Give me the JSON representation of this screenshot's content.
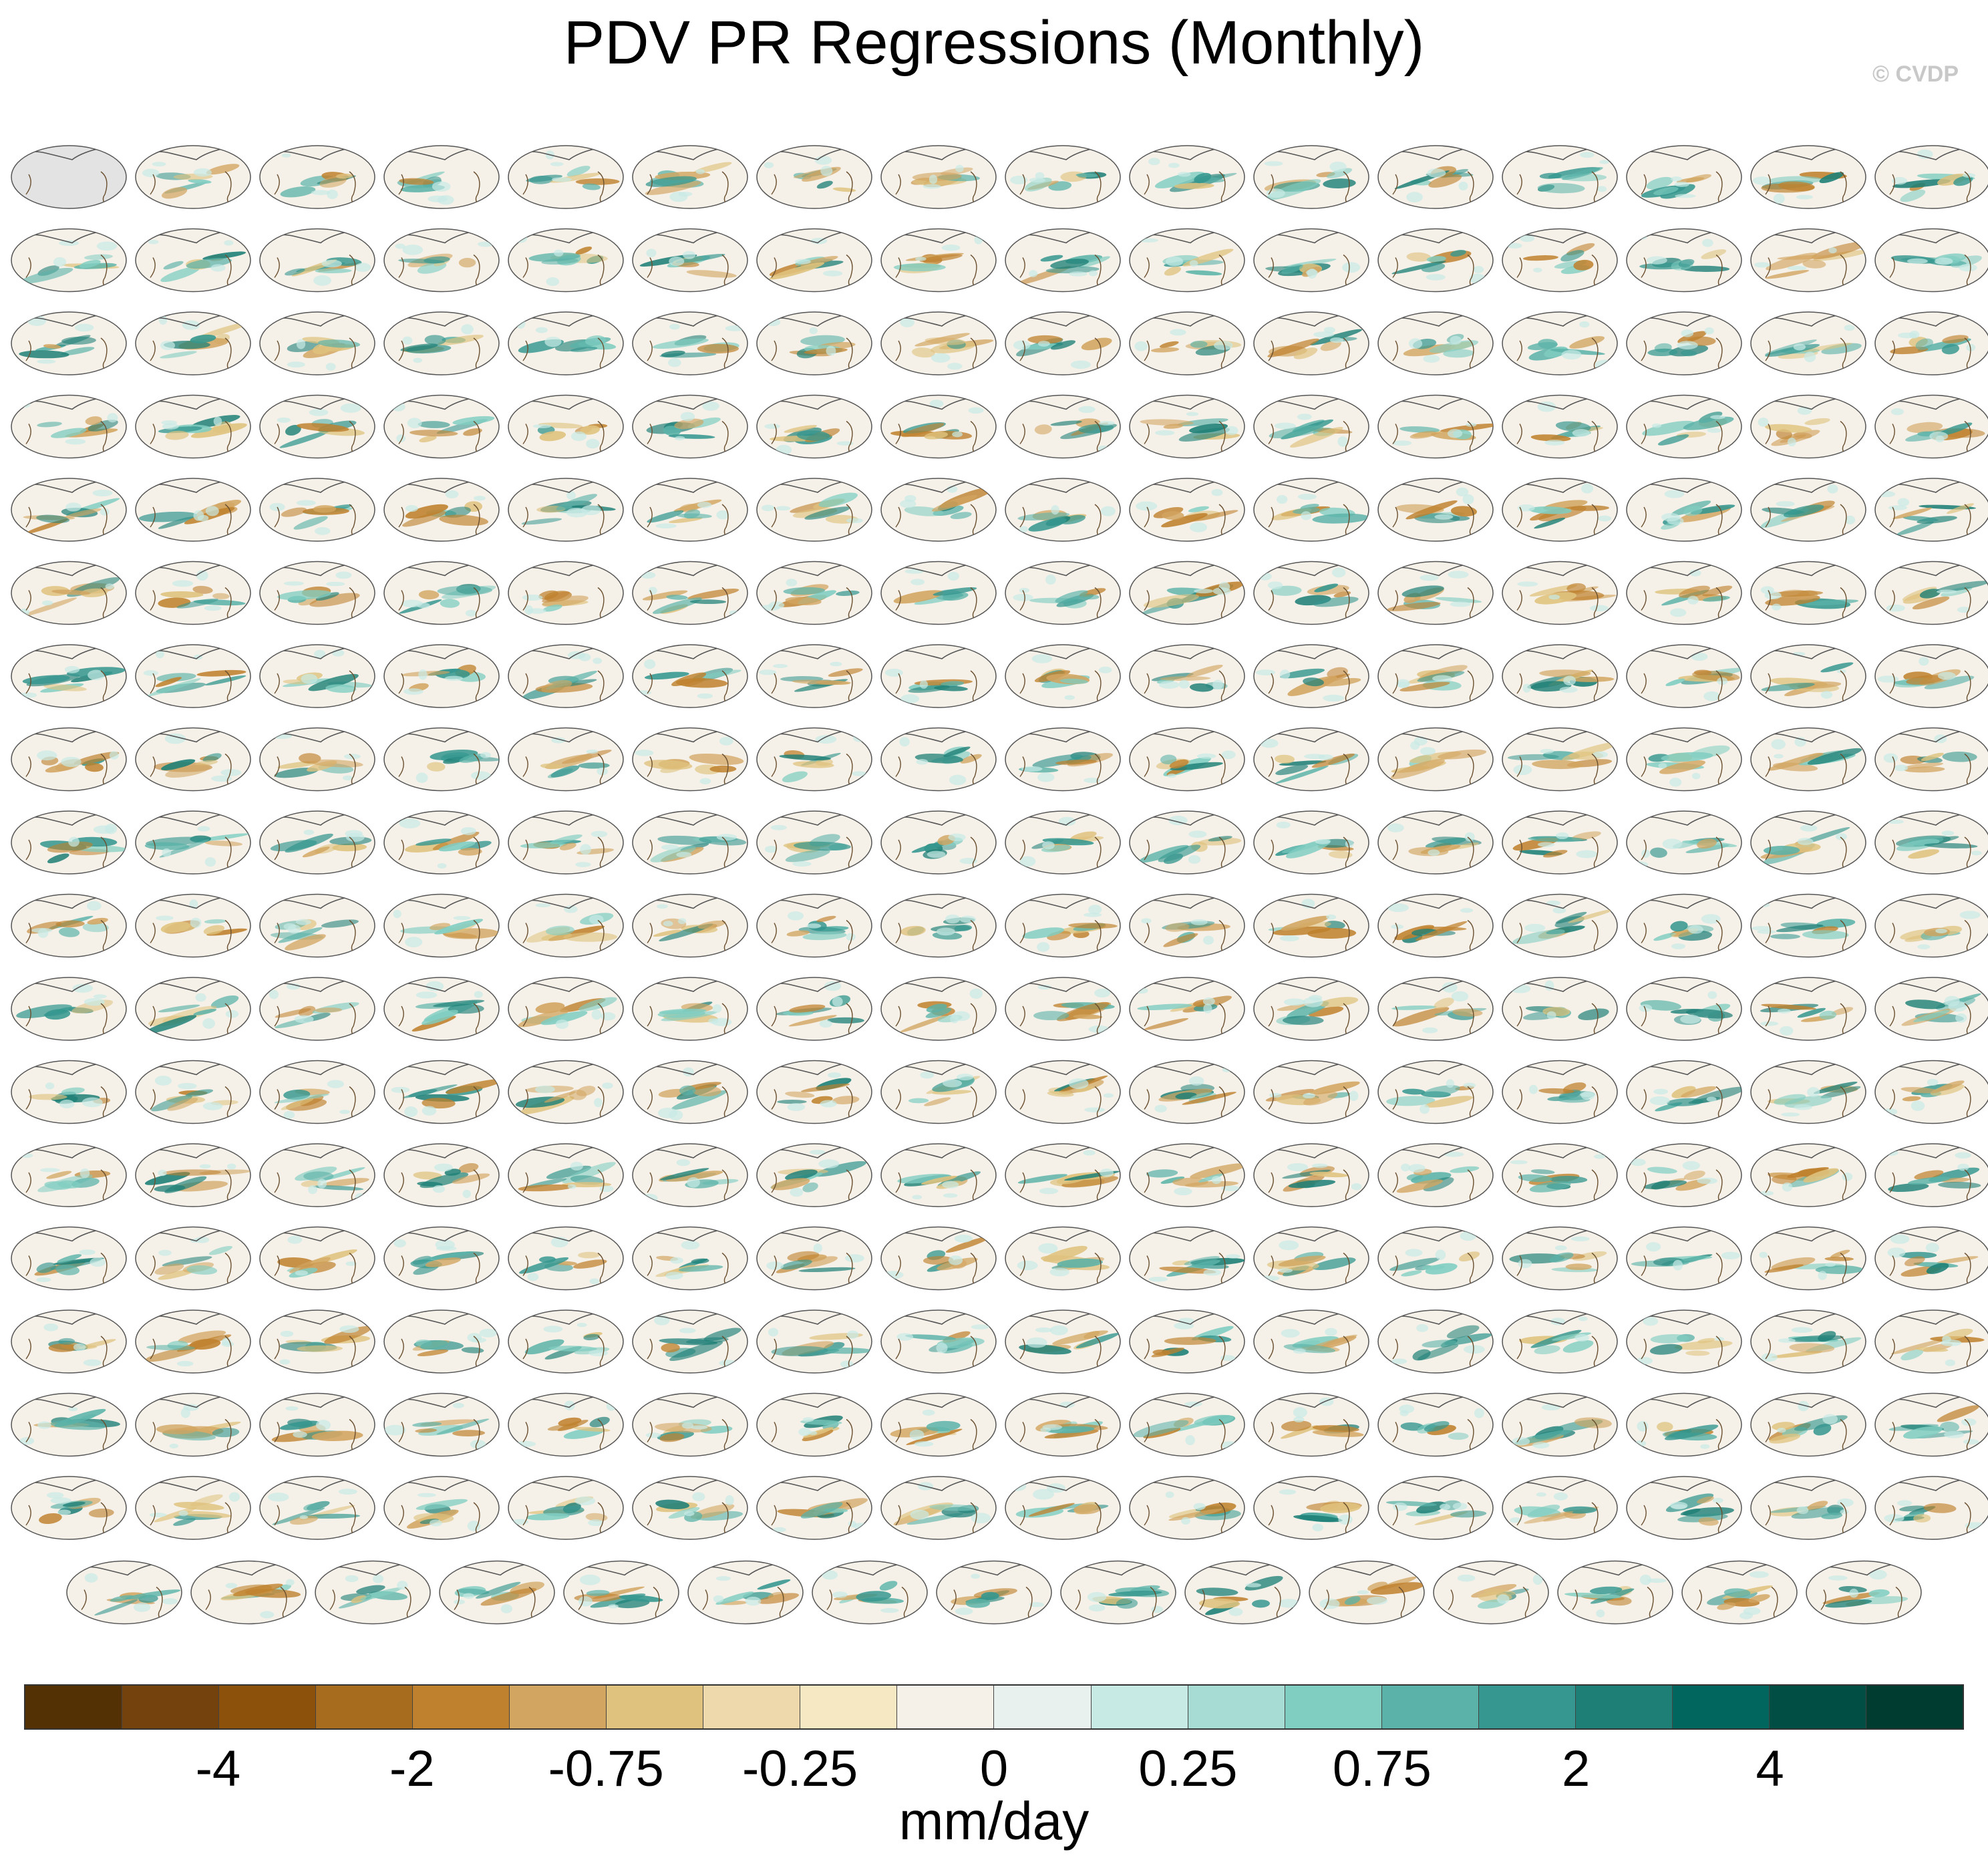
{
  "title": "PDV PR Regressions (Monthly)",
  "watermark": "© CVDP",
  "chart_data": {
    "type": "heatmap",
    "description_free": true,
    "units": "mm/day",
    "colorbar": {
      "colors": [
        "#543005",
        "#74420d",
        "#8c510a",
        "#a86c1f",
        "#bf812d",
        "#d2a560",
        "#dfc27d",
        "#edd9ab",
        "#f6e8c3",
        "#f5f1e9",
        "#e9f1ef",
        "#c7eae5",
        "#a6dcd3",
        "#80cdc1",
        "#5ab2a8",
        "#35978f",
        "#1d7f76",
        "#01665e",
        "#004e44",
        "#003c30"
      ],
      "tick_labels": [
        "-4",
        "-2",
        "-0.75",
        "-0.25",
        "0",
        "0.25",
        "0.75",
        "2",
        "4"
      ]
    },
    "panel_grid": {
      "full_rows": 17,
      "cols": 16,
      "last_row_count": 15
    }
  }
}
